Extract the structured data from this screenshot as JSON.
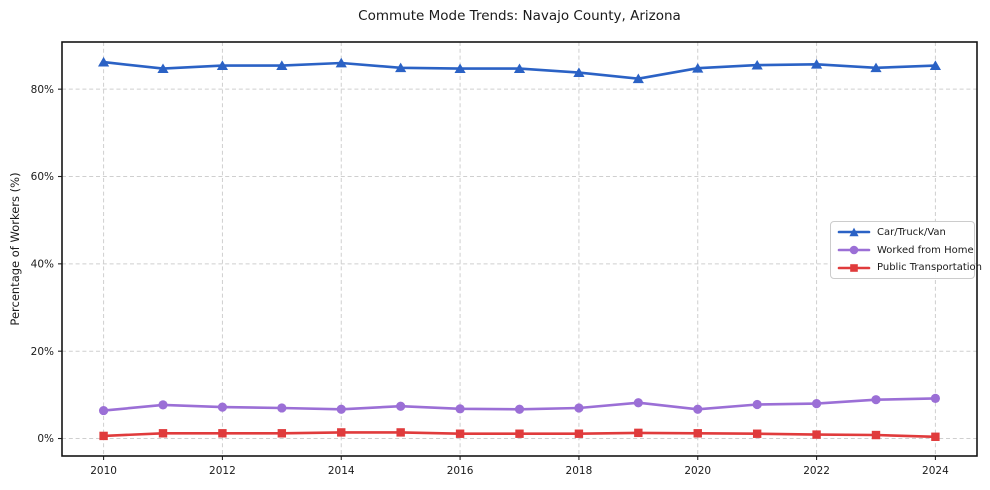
{
  "chart_data": {
    "type": "line",
    "title": "Commute Mode Trends: Navajo County, Arizona",
    "xlabel": "",
    "ylabel": "Percentage of Workers (%)",
    "grid": true,
    "legend_position": "center right",
    "xlim": [
      2009.3,
      2024.7
    ],
    "ylim": [
      -4.0,
      90.8
    ],
    "x": [
      2010,
      2011,
      2012,
      2013,
      2014,
      2015,
      2016,
      2017,
      2018,
      2019,
      2020,
      2021,
      2022,
      2023,
      2024
    ],
    "x_ticks": [
      {
        "label": "2010",
        "value": 2010
      },
      {
        "label": "2012",
        "value": 2012
      },
      {
        "label": "2014",
        "value": 2014
      },
      {
        "label": "2016",
        "value": 2016
      },
      {
        "label": "2018",
        "value": 2018
      },
      {
        "label": "2020",
        "value": 2020
      },
      {
        "label": "2022",
        "value": 2022
      },
      {
        "label": "2024",
        "value": 2024
      }
    ],
    "y_ticks": [
      {
        "label": "0%",
        "value": 0
      },
      {
        "label": "20%",
        "value": 20
      },
      {
        "label": "40%",
        "value": 40
      },
      {
        "label": "60%",
        "value": 60
      },
      {
        "label": "80%",
        "value": 80
      }
    ],
    "series": [
      {
        "id": "car-truck-van",
        "name": "Car/Truck/Van",
        "color": "#2b62c5",
        "marker": "triangle",
        "values": [
          86.2,
          84.7,
          85.4,
          85.4,
          86.0,
          84.9,
          84.7,
          84.7,
          83.8,
          82.4,
          84.8,
          85.5,
          85.7,
          84.9,
          85.4
        ]
      },
      {
        "id": "worked-from-home",
        "name": "Worked from Home",
        "color": "#9b6fd6",
        "marker": "circle",
        "values": [
          6.4,
          7.7,
          7.2,
          7.0,
          6.7,
          7.4,
          6.8,
          6.7,
          7.0,
          8.2,
          6.7,
          7.8,
          8.0,
          8.9,
          9.2
        ]
      },
      {
        "id": "public-transportation",
        "name": "Public Transportation",
        "color": "#e03b3c",
        "marker": "square",
        "values": [
          0.6,
          1.2,
          1.2,
          1.2,
          1.4,
          1.4,
          1.1,
          1.1,
          1.1,
          1.3,
          1.2,
          1.1,
          0.9,
          0.8,
          0.4
        ]
      }
    ]
  }
}
